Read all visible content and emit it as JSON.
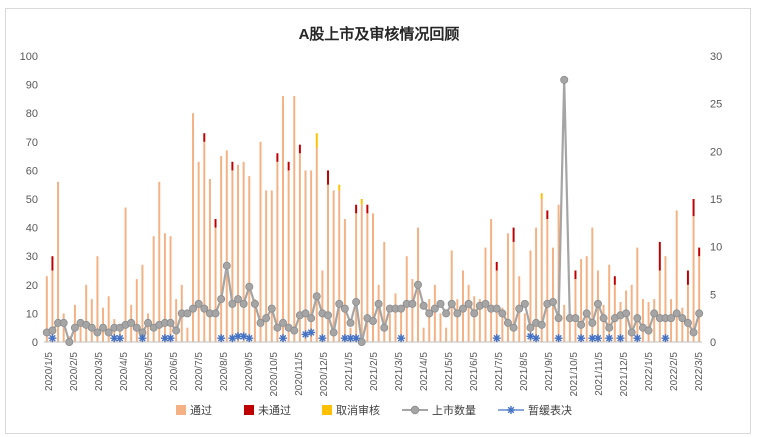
{
  "chart_data": {
    "type": "bar",
    "title": "A股上市及审核情况回顾",
    "left_axis": {
      "min": 0,
      "max": 100,
      "ticks": [
        0,
        10,
        20,
        30,
        40,
        50,
        60,
        70,
        80,
        90,
        100
      ]
    },
    "right_axis": {
      "min": 0,
      "max": 30,
      "ticks": [
        0,
        5,
        10,
        15,
        20,
        25,
        30
      ]
    },
    "x_ticks": [
      "2020/1/5",
      "2020/2/5",
      "2020/3/5",
      "2020/4/5",
      "2020/5/5",
      "2020/6/5",
      "2020/7/5",
      "2020/8/5",
      "2020/9/5",
      "2020/10/5",
      "2020/11/5",
      "2020/12/5",
      "2021/1/5",
      "2021/2/5",
      "2021/3/5",
      "2021/4/5",
      "2021/5/5",
      "2021/6/5",
      "2021/7/5",
      "2021/8/5",
      "2021/9/5",
      "2021/10/5",
      "2021/11/5",
      "2021/12/5",
      "2022/1/5",
      "2022/2/5",
      "2022/3/5"
    ],
    "legend": [
      {
        "name": "通过",
        "color": "#f4b183",
        "kind": "bar"
      },
      {
        "name": "未通过",
        "color": "#c00000",
        "kind": "bar"
      },
      {
        "name": "取消审核",
        "color": "#ffc000",
        "kind": "bar"
      },
      {
        "name": "上市数量",
        "color": "#a5a5a5",
        "kind": "line"
      },
      {
        "name": "暂缓表决",
        "color": "#4472c4",
        "kind": "marker"
      }
    ],
    "legend_position": "bottom",
    "grid": false,
    "periods": 117,
    "series": [
      {
        "name": "通过",
        "axis": "left",
        "values": [
          23,
          25,
          56,
          10,
          2,
          13,
          8,
          20,
          15,
          30,
          12,
          16,
          8,
          5,
          47,
          13,
          22,
          27,
          10,
          37,
          56,
          38,
          37,
          15,
          20,
          5,
          80,
          63,
          70,
          57,
          40,
          65,
          67,
          60,
          62,
          63,
          58,
          15,
          70,
          53,
          53,
          63,
          86,
          60,
          86,
          66,
          60,
          60,
          68,
          25,
          55,
          53,
          53,
          43,
          5,
          45,
          48,
          45,
          45,
          20,
          35,
          10,
          17,
          12,
          30,
          22,
          40,
          5,
          15,
          20,
          10,
          5,
          32,
          15,
          25,
          20,
          16,
          15,
          33,
          43,
          25,
          12,
          38,
          35,
          23,
          10,
          32,
          40,
          50,
          43,
          33,
          48,
          13,
          10,
          22,
          29,
          30,
          40,
          25,
          13,
          27,
          20,
          14,
          18,
          20,
          33,
          15,
          14,
          15,
          25,
          30,
          15,
          46,
          12,
          20,
          44,
          30
        ]
      },
      {
        "name": "未通过",
        "axis": "left",
        "values": [
          0,
          5,
          0,
          0,
          0,
          0,
          0,
          0,
          0,
          0,
          0,
          0,
          0,
          0,
          0,
          0,
          0,
          0,
          0,
          0,
          0,
          0,
          0,
          0,
          0,
          0,
          0,
          0,
          3,
          0,
          3,
          0,
          0,
          3,
          0,
          0,
          0,
          0,
          0,
          0,
          0,
          3,
          0,
          3,
          0,
          3,
          0,
          0,
          0,
          0,
          5,
          0,
          0,
          0,
          0,
          3,
          0,
          3,
          0,
          0,
          0,
          0,
          0,
          0,
          0,
          0,
          0,
          0,
          0,
          0,
          0,
          0,
          0,
          0,
          0,
          0,
          0,
          0,
          0,
          0,
          3,
          0,
          0,
          5,
          0,
          0,
          0,
          0,
          0,
          3,
          0,
          0,
          0,
          0,
          3,
          0,
          0,
          0,
          0,
          0,
          0,
          3,
          0,
          0,
          0,
          0,
          0,
          0,
          0,
          10,
          0,
          0,
          0,
          0,
          5,
          6,
          3
        ]
      },
      {
        "name": "取消审核",
        "axis": "left",
        "values": [
          0,
          0,
          0,
          0,
          0,
          0,
          0,
          0,
          0,
          0,
          0,
          0,
          0,
          0,
          0,
          0,
          0,
          0,
          0,
          0,
          0,
          0,
          0,
          0,
          0,
          0,
          0,
          0,
          0,
          0,
          0,
          0,
          0,
          0,
          0,
          0,
          0,
          0,
          0,
          0,
          0,
          0,
          0,
          0,
          0,
          0,
          0,
          0,
          5,
          0,
          0,
          0,
          2,
          0,
          0,
          0,
          2,
          0,
          0,
          0,
          0,
          0,
          0,
          0,
          0,
          0,
          0,
          0,
          0,
          0,
          0,
          0,
          0,
          0,
          0,
          0,
          0,
          0,
          0,
          0,
          0,
          0,
          0,
          0,
          0,
          0,
          0,
          0,
          2,
          0,
          0,
          0,
          0,
          0,
          0,
          0,
          0,
          0,
          0,
          0,
          0,
          0,
          0,
          0,
          0,
          0,
          0,
          0,
          0,
          0,
          0,
          0,
          0,
          0,
          0,
          0,
          0
        ]
      },
      {
        "name": "上市数量",
        "axis": "right",
        "values": [
          1,
          1.2,
          2,
          2,
          0,
          1.5,
          2,
          1.8,
          1.5,
          1,
          1.5,
          1,
          1.5,
          1.5,
          1.8,
          2,
          1.5,
          1,
          2,
          1.5,
          1.8,
          2,
          2,
          1.2,
          3,
          3,
          3.5,
          4,
          3.5,
          3,
          3,
          4.5,
          8,
          4,
          4.5,
          4,
          5.8,
          4,
          2,
          2.5,
          3.5,
          1.5,
          2,
          1.5,
          1.2,
          2.8,
          3,
          2.5,
          4.8,
          3,
          2.8,
          1,
          4,
          3.5,
          2,
          4.2,
          0,
          2.5,
          2.2,
          4,
          1.5,
          3.5,
          3.5,
          3.5,
          4,
          4,
          6,
          3.8,
          3,
          3.5,
          4,
          3,
          4,
          3,
          3.5,
          4,
          3,
          3.8,
          4,
          3.5,
          3.5,
          3,
          2,
          1.5,
          3.5,
          4,
          1.5,
          2,
          1.8,
          4,
          4.2,
          2.5,
          27.5,
          2.5,
          2.5,
          1.8,
          3,
          2,
          4,
          2.5,
          1.5,
          2.5,
          2.8,
          3,
          1,
          2.5,
          1.5,
          1.2,
          3,
          2.5,
          2.5,
          2.5,
          3,
          2.5,
          2,
          1,
          3
        ]
      },
      {
        "name": "暂缓表决",
        "axis": "right",
        "points": [
          [
            1,
            0.4
          ],
          [
            12,
            0.4
          ],
          [
            13,
            0.4
          ],
          [
            17,
            0.4
          ],
          [
            21,
            0.4
          ],
          [
            22,
            0.4
          ],
          [
            31,
            0.4
          ],
          [
            33,
            0.4
          ],
          [
            34,
            0.6
          ],
          [
            35,
            0.6
          ],
          [
            36,
            0.4
          ],
          [
            42,
            0.4
          ],
          [
            46,
            0.8
          ],
          [
            47,
            1
          ],
          [
            49,
            0.4
          ],
          [
            53,
            0.4
          ],
          [
            54,
            0.4
          ],
          [
            55,
            0.4
          ],
          [
            63,
            0.4
          ],
          [
            80,
            0.4
          ],
          [
            86,
            0.6
          ],
          [
            87,
            0.4
          ],
          [
            91,
            0.4
          ],
          [
            95,
            0.4
          ],
          [
            97,
            0.4
          ],
          [
            98,
            0.4
          ],
          [
            100,
            0.4
          ],
          [
            102,
            0.4
          ],
          [
            105,
            0.4
          ],
          [
            110,
            0.4
          ]
        ]
      }
    ]
  }
}
